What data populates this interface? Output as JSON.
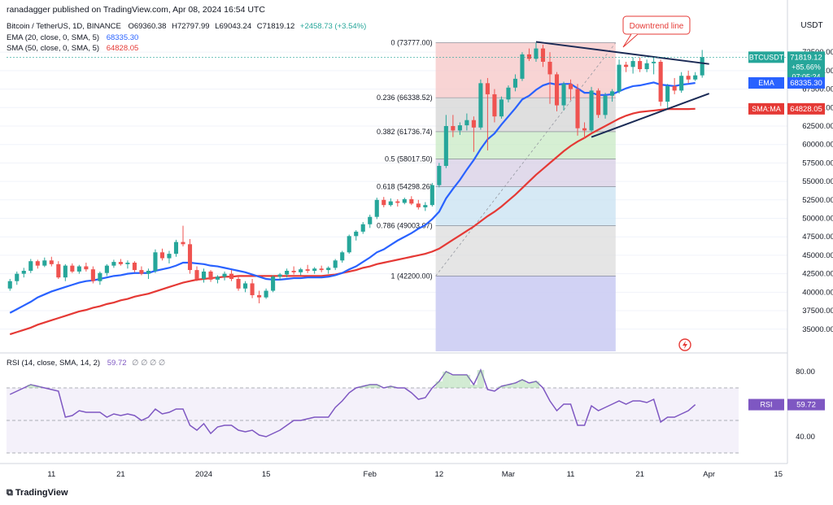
{
  "header": {
    "published": "ranadagger published on TradingView.com, Apr 08, 2024 16:54 UTC"
  },
  "legend": {
    "symbol": "Bitcoin / TetherUS, 1D, BINANCE",
    "o": "O69360.38",
    "h": "H72797.99",
    "l": "L69043.24",
    "c": "C71819.12",
    "chg": "+2458.73 (+3.54%)",
    "ema_label": "EMA (20, close, 0, SMA, 5)",
    "ema_value": "68335.30",
    "sma_label": "SMA (50, close, 0, SMA, 5)",
    "sma_value": "64828.05",
    "rsi_label": "RSI (14, close, SMA, 14, 2)",
    "rsi_value": "59.72",
    "rsi_extra": "∅ ∅ ∅ ∅"
  },
  "price_scale": {
    "currency": "USDT",
    "ticks": [
      "72500.00",
      "70000.00",
      "67500.00",
      "65000.00",
      "62500.00",
      "60000.00",
      "57500.00",
      "55000.00",
      "52500.00",
      "50000.00",
      "47500.00",
      "45000.00",
      "42500.00",
      "40000.00",
      "37500.00",
      "35000.00"
    ],
    "tick_values": [
      72500,
      70000,
      67500,
      65000,
      62500,
      60000,
      57500,
      55000,
      52500,
      50000,
      47500,
      45000,
      42500,
      40000,
      37500,
      35000
    ]
  },
  "price_tags": {
    "btc_label": "BTCUSDT",
    "btc_price": "71819.12",
    "btc_change": "+85.66%",
    "countdown": "07:05:24",
    "ema_tag": "EMA",
    "ema_value": "68335.30",
    "sma_tag": "SMA:MA",
    "sma_value": "64828.05"
  },
  "rsi_scale": {
    "ticks": [
      "80.00",
      "40.00"
    ],
    "tag": "RSI",
    "value": "59.72"
  },
  "time_axis": {
    "labels": [
      "11",
      "21",
      "2024",
      "15",
      "Feb",
      "12",
      "Mar",
      "11",
      "21",
      "Apr",
      "15"
    ],
    "positions": [
      6,
      16,
      28,
      37,
      52,
      62,
      72,
      81,
      91,
      101,
      111
    ]
  },
  "annotation": {
    "text": "Downtrend line"
  },
  "fibonacci": {
    "high": 73777,
    "low": 42200,
    "levels": [
      {
        "label": "0 (73777.00)",
        "value": 73777,
        "color": "#f6c6c6"
      },
      {
        "label": "0.236 (66338.52)",
        "value": 66338.52,
        "color": "#d4d4d4"
      },
      {
        "label": "0.382 (61736.74)",
        "value": 61736.74,
        "color": "#c8eac4"
      },
      {
        "label": "0.5 (58017.50)",
        "value": 58017.5,
        "color": "#d7cde4"
      },
      {
        "label": "0.618 (54298.26)",
        "value": 54298.26,
        "color": "#c8e2f2"
      },
      {
        "label": "0.786 (49003.07)",
        "value": 49003.07,
        "color": "#dcdcdc"
      },
      {
        "label": "1 (42200.00)",
        "value": 42200,
        "color": "#c9caf2"
      }
    ],
    "bottom_label": "1 (42200.00)"
  },
  "colors": {
    "up": "#26a69a",
    "down": "#ef5350",
    "ema": "#2962ff",
    "sma": "#e53935",
    "rsi": "#7e57c2",
    "trend": "#1a2a55"
  },
  "watermark": "TradingView",
  "chart_data": {
    "type": "candlestick",
    "title": "Bitcoin / TetherUS, 1D, BINANCE",
    "ylim": [
      32000,
      75600
    ],
    "rsi_ylim": [
      25,
      90
    ],
    "candles": [
      [
        40500,
        41800,
        40200,
        41500
      ],
      [
        41500,
        42800,
        41000,
        42500
      ],
      [
        42500,
        43300,
        42000,
        42900
      ],
      [
        42900,
        44500,
        42600,
        44200
      ],
      [
        44200,
        44400,
        43200,
        43600
      ],
      [
        43600,
        44700,
        43400,
        44300
      ],
      [
        44300,
        44800,
        43500,
        43800
      ],
      [
        43800,
        44200,
        41800,
        42000
      ],
      [
        42000,
        43800,
        41500,
        43600
      ],
      [
        43600,
        43900,
        42600,
        42800
      ],
      [
        42800,
        43700,
        42500,
        43500
      ],
      [
        43500,
        44000,
        42800,
        43100
      ],
      [
        43100,
        43500,
        41200,
        41500
      ],
      [
        41500,
        42800,
        41000,
        42600
      ],
      [
        42600,
        43800,
        42200,
        43600
      ],
      [
        43600,
        44400,
        43300,
        44100
      ],
      [
        44100,
        44500,
        43600,
        43800
      ],
      [
        43800,
        44300,
        43200,
        44000
      ],
      [
        44000,
        44200,
        42700,
        43000
      ],
      [
        43000,
        43500,
        42300,
        42500
      ],
      [
        42500,
        43200,
        41800,
        42900
      ],
      [
        42900,
        45800,
        42600,
        45400
      ],
      [
        45400,
        45900,
        44300,
        44600
      ],
      [
        44600,
        45600,
        43900,
        45200
      ],
      [
        45200,
        47100,
        44800,
        46800
      ],
      [
        46800,
        49000,
        46200,
        46500
      ],
      [
        46500,
        47200,
        42500,
        43000
      ],
      [
        43000,
        43500,
        41500,
        41800
      ],
      [
        41800,
        43200,
        41300,
        42800
      ],
      [
        42800,
        43000,
        41400,
        41700
      ],
      [
        41700,
        42300,
        41200,
        42100
      ],
      [
        42100,
        42800,
        41600,
        42500
      ],
      [
        42500,
        43000,
        41500,
        41800
      ],
      [
        41800,
        42200,
        40200,
        40500
      ],
      [
        40500,
        41500,
        40000,
        41200
      ],
      [
        41200,
        41800,
        39200,
        39600
      ],
      [
        39600,
        40200,
        38500,
        39300
      ],
      [
        39300,
        40500,
        39100,
        40200
      ],
      [
        40200,
        42300,
        40000,
        42100
      ],
      [
        42100,
        42600,
        41600,
        42400
      ],
      [
        42400,
        43200,
        42000,
        42900
      ],
      [
        42900,
        43500,
        42400,
        42700
      ],
      [
        42700,
        43300,
        42300,
        43100
      ],
      [
        43100,
        43700,
        42600,
        42900
      ],
      [
        42900,
        43400,
        42500,
        43200
      ],
      [
        43200,
        43600,
        42700,
        43000
      ],
      [
        43000,
        43500,
        42500,
        43300
      ],
      [
        43300,
        44500,
        43000,
        44300
      ],
      [
        44300,
        45600,
        44000,
        45400
      ],
      [
        45400,
        47800,
        45200,
        47600
      ],
      [
        47600,
        48400,
        47000,
        48200
      ],
      [
        48200,
        49500,
        47900,
        49200
      ],
      [
        49200,
        50500,
        48700,
        50200
      ],
      [
        50200,
        52800,
        49900,
        52500
      ],
      [
        52500,
        52900,
        51500,
        51800
      ],
      [
        51800,
        52700,
        51600,
        52300
      ],
      [
        52300,
        52600,
        51600,
        52100
      ],
      [
        52100,
        52800,
        51900,
        52600
      ],
      [
        52600,
        53000,
        51800,
        52000
      ],
      [
        52000,
        52500,
        51200,
        51500
      ],
      [
        51500,
        52200,
        51000,
        51800
      ],
      [
        51800,
        54800,
        51600,
        54500
      ],
      [
        54500,
        57500,
        54200,
        57100
      ],
      [
        57100,
        64000,
        56800,
        62500
      ],
      [
        62500,
        64000,
        61000,
        61900
      ],
      [
        61900,
        63000,
        61300,
        62600
      ],
      [
        62600,
        64200,
        61900,
        63300
      ],
      [
        63300,
        63800,
        59000,
        62300
      ],
      [
        62300,
        68800,
        62000,
        68300
      ],
      [
        68300,
        69000,
        59200,
        66800
      ],
      [
        66800,
        67500,
        63000,
        63800
      ],
      [
        63800,
        66500,
        63500,
        66100
      ],
      [
        66100,
        68000,
        65700,
        67700
      ],
      [
        67700,
        69500,
        67200,
        68900
      ],
      [
        68900,
        72500,
        68600,
        72200
      ],
      [
        72200,
        73000,
        71300,
        71600
      ],
      [
        71600,
        73777,
        71200,
        73000
      ],
      [
        73000,
        73500,
        70500,
        71200
      ],
      [
        71200,
        72500,
        65500,
        69500
      ],
      [
        69500,
        69800,
        64500,
        65300
      ],
      [
        65300,
        68500,
        64600,
        68200
      ],
      [
        68200,
        68800,
        66000,
        67500
      ],
      [
        67500,
        68200,
        61200,
        62200
      ],
      [
        62200,
        63000,
        60800,
        61900
      ],
      [
        61900,
        67800,
        61700,
        67300
      ],
      [
        67300,
        67600,
        63600,
        64000
      ],
      [
        64000,
        67000,
        63500,
        66600
      ],
      [
        66600,
        67500,
        65800,
        67200
      ],
      [
        67200,
        71500,
        66900,
        70800
      ],
      [
        70800,
        71200,
        69800,
        70500
      ],
      [
        70500,
        71800,
        69600,
        71300
      ],
      [
        71300,
        71800,
        69800,
        70200
      ],
      [
        70200,
        71500,
        69800,
        71000
      ],
      [
        71000,
        71800,
        69500,
        71200
      ],
      [
        71200,
        71500,
        65200,
        65800
      ],
      [
        65800,
        68200,
        64700,
        67900
      ],
      [
        67900,
        69000,
        66800,
        67300
      ],
      [
        67300,
        69800,
        67000,
        69300
      ],
      [
        69300,
        70000,
        68300,
        68800
      ],
      [
        68800,
        69800,
        68600,
        69360
      ],
      [
        69360,
        72798,
        69043,
        71819
      ]
    ],
    "ema20": [
      37200,
      37700,
      38200,
      38700,
      39300,
      39700,
      40100,
      40400,
      40700,
      41000,
      41300,
      41500,
      41600,
      41800,
      42000,
      42200,
      42300,
      42500,
      42600,
      42600,
      42600,
      42900,
      43100,
      43300,
      43600,
      44000,
      44000,
      43900,
      43800,
      43600,
      43500,
      43300,
      43100,
      42900,
      42700,
      42400,
      42100,
      41800,
      41700,
      41700,
      41800,
      41900,
      41900,
      42000,
      42000,
      42000,
      42100,
      42300,
      42600,
      43100,
      43500,
      44100,
      44700,
      45400,
      45800,
      46400,
      47000,
      47500,
      48000,
      48600,
      49100,
      49900,
      50900,
      52700,
      54000,
      55200,
      56600,
      57900,
      59400,
      60700,
      61500,
      62700,
      63800,
      64900,
      66100,
      66600,
      67400,
      68000,
      68300,
      68100,
      68200,
      68200,
      67600,
      67000,
      67000,
      66700,
      66700,
      66800,
      67200,
      67600,
      67900,
      68000,
      68200,
      68400,
      68100,
      68000,
      67900,
      68100,
      68200,
      68335
    ],
    "sma50": [
      34300,
      34600,
      34900,
      35200,
      35600,
      35900,
      36200,
      36500,
      36800,
      37100,
      37400,
      37600,
      37900,
      38100,
      38400,
      38600,
      38900,
      39100,
      39400,
      39600,
      39800,
      40100,
      40400,
      40700,
      41000,
      41300,
      41500,
      41700,
      41800,
      41900,
      42000,
      42100,
      42100,
      42200,
      42200,
      42200,
      42200,
      42200,
      42200,
      42200,
      42200,
      42200,
      42200,
      42200,
      42200,
      42200,
      42300,
      42400,
      42600,
      42800,
      43000,
      43300,
      43500,
      43800,
      44000,
      44200,
      44400,
      44600,
      44800,
      45000,
      45200,
      45500,
      45900,
      46500,
      47100,
      47700,
      48300,
      48900,
      49600,
      50300,
      50900,
      51600,
      52400,
      53200,
      54100,
      55000,
      55900,
      56700,
      57500,
      58300,
      59100,
      59800,
      60400,
      60900,
      61500,
      62000,
      62500,
      63000,
      63500,
      63900,
      64200,
      64400,
      64500,
      64600,
      64700,
      64800,
      64800,
      64800,
      64800,
      64828
    ],
    "rsi": [
      66,
      68,
      70,
      72,
      71,
      70,
      69,
      68,
      52,
      53,
      56,
      55,
      55,
      55,
      52,
      54,
      53,
      54,
      53,
      50,
      52,
      57,
      54,
      55,
      57,
      57,
      47,
      44,
      48,
      42,
      46,
      47,
      47,
      44,
      43,
      44,
      41,
      40,
      42,
      44,
      47,
      50,
      50,
      51,
      52,
      52,
      52,
      58,
      62,
      67,
      70,
      71,
      72,
      72,
      70,
      71,
      70,
      70,
      67,
      63,
      64,
      70,
      74,
      80,
      78,
      78,
      78,
      72,
      81,
      69,
      68,
      71,
      72,
      73,
      75,
      73,
      74,
      70,
      62,
      56,
      60,
      60,
      47,
      47,
      59,
      56,
      58,
      60,
      62,
      60,
      62,
      62,
      61,
      63,
      49,
      52,
      52,
      54,
      56,
      59.72
    ]
  }
}
